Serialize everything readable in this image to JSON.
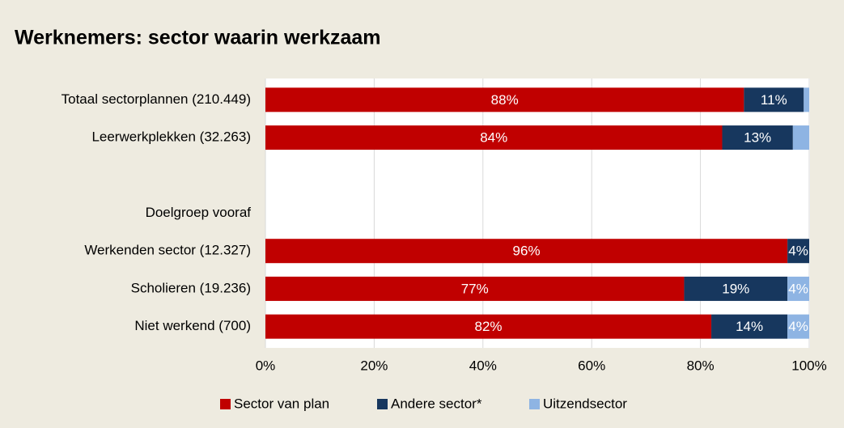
{
  "chart_data": {
    "type": "stacked-bar-horizontal",
    "title": "Werknemers: sector waarin werkzaam",
    "categories": [
      "Totaal sectorplannen (210.449)",
      "Leerwerkplekken (32.263)",
      null,
      "Doelgroep vooraf",
      "Werkenden sector (12.327)",
      "Scholieren (19.236)",
      "Niet werkend (700)"
    ],
    "series": [
      {
        "name": "Sector van plan",
        "color": "#c00000",
        "values": [
          88,
          84,
          null,
          null,
          96,
          77,
          82
        ],
        "value_labels": [
          "88%",
          "84%",
          null,
          null,
          "96%",
          "77%",
          "82%"
        ]
      },
      {
        "name": "Andere sector*",
        "color": "#17375e",
        "values": [
          11,
          13,
          null,
          null,
          4,
          19,
          14
        ],
        "value_labels": [
          "11%",
          "13%",
          null,
          null,
          "4%",
          "19%",
          "14%"
        ]
      },
      {
        "name": "Uitzendsector",
        "color": "#8eb4e3",
        "values": [
          1,
          3,
          null,
          null,
          0,
          4,
          4
        ],
        "value_labels": [
          null,
          null,
          null,
          null,
          null,
          "4%",
          "4%"
        ]
      }
    ],
    "xlim": [
      0,
      100
    ],
    "xticks": [
      {
        "value": 0,
        "label": "0%"
      },
      {
        "value": 20,
        "label": "20%"
      },
      {
        "value": 40,
        "label": "40%"
      },
      {
        "value": 60,
        "label": "60%"
      },
      {
        "value": 80,
        "label": "80%"
      },
      {
        "value": 100,
        "label": "100%"
      }
    ],
    "grid": true,
    "legend": "bottom"
  }
}
